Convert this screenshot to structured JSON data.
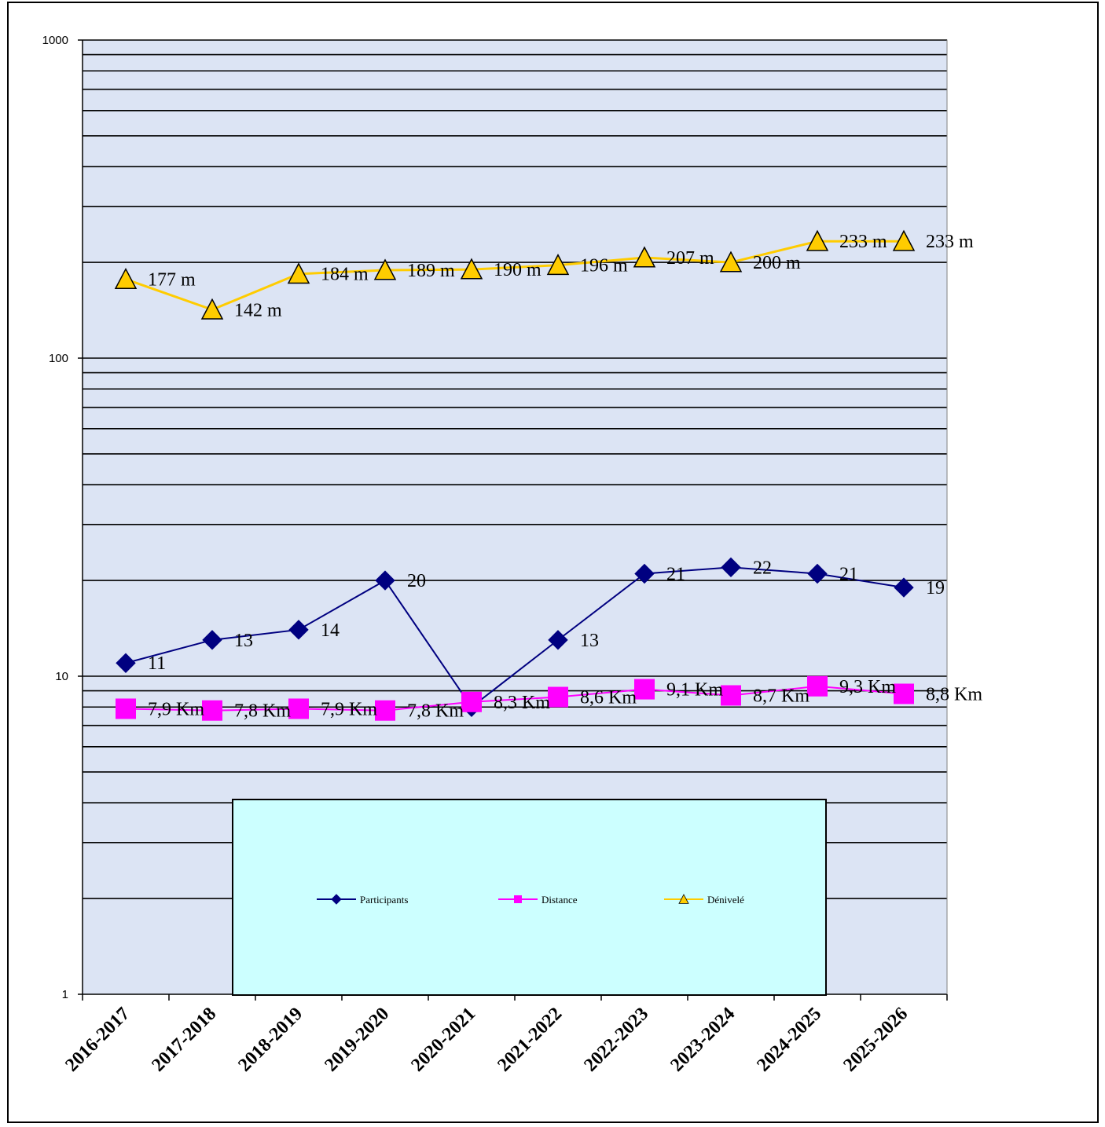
{
  "chart_data": {
    "type": "line",
    "y_scale": "log",
    "ylim": [
      1,
      1000
    ],
    "y_ticks": [
      "1",
      "10",
      "100",
      "1000"
    ],
    "grid": true,
    "legend_position": "bottom-center",
    "categories": [
      "2016-2017",
      "2017-2018",
      "2018-2019",
      "2019-2020",
      "2020-2021",
      "2021-2022",
      "2022-2023",
      "2023-2024",
      "2024-2025",
      "2025-2026"
    ],
    "series": [
      {
        "name": "Participants",
        "color": "#000080",
        "marker": "diamond",
        "values": [
          11,
          13,
          14,
          20,
          8,
          13,
          21,
          22,
          21,
          19
        ],
        "labels": [
          "11",
          "13",
          "14",
          "20",
          "",
          "13",
          "21",
          "22",
          "21",
          "19"
        ]
      },
      {
        "name": "Distance",
        "color": "#FF00FF",
        "marker": "square",
        "values": [
          7.9,
          7.8,
          7.9,
          7.8,
          8.3,
          8.6,
          9.1,
          8.7,
          9.3,
          8.8
        ],
        "labels": [
          "7,9 Km",
          "7,8 Km",
          "7,9 Km",
          "7,8 Km",
          "8,3 Km",
          "8,6 Km",
          "9,1 Km",
          "8,7 Km",
          "9,3 Km",
          "8,8 Km"
        ]
      },
      {
        "name": "Dénivelé",
        "color": "#FFCC00",
        "marker": "triangle",
        "values": [
          177,
          142,
          184,
          189,
          190,
          196,
          207,
          200,
          233,
          233
        ],
        "labels": [
          "177 m",
          "142 m",
          "184 m",
          "189 m",
          "190 m",
          "196 m",
          "207 m",
          "200 m",
          "233 m",
          "233 m"
        ]
      }
    ]
  },
  "colors": {
    "plot_background": "#DCE4F4",
    "legend_background": "#CCFFFF"
  }
}
